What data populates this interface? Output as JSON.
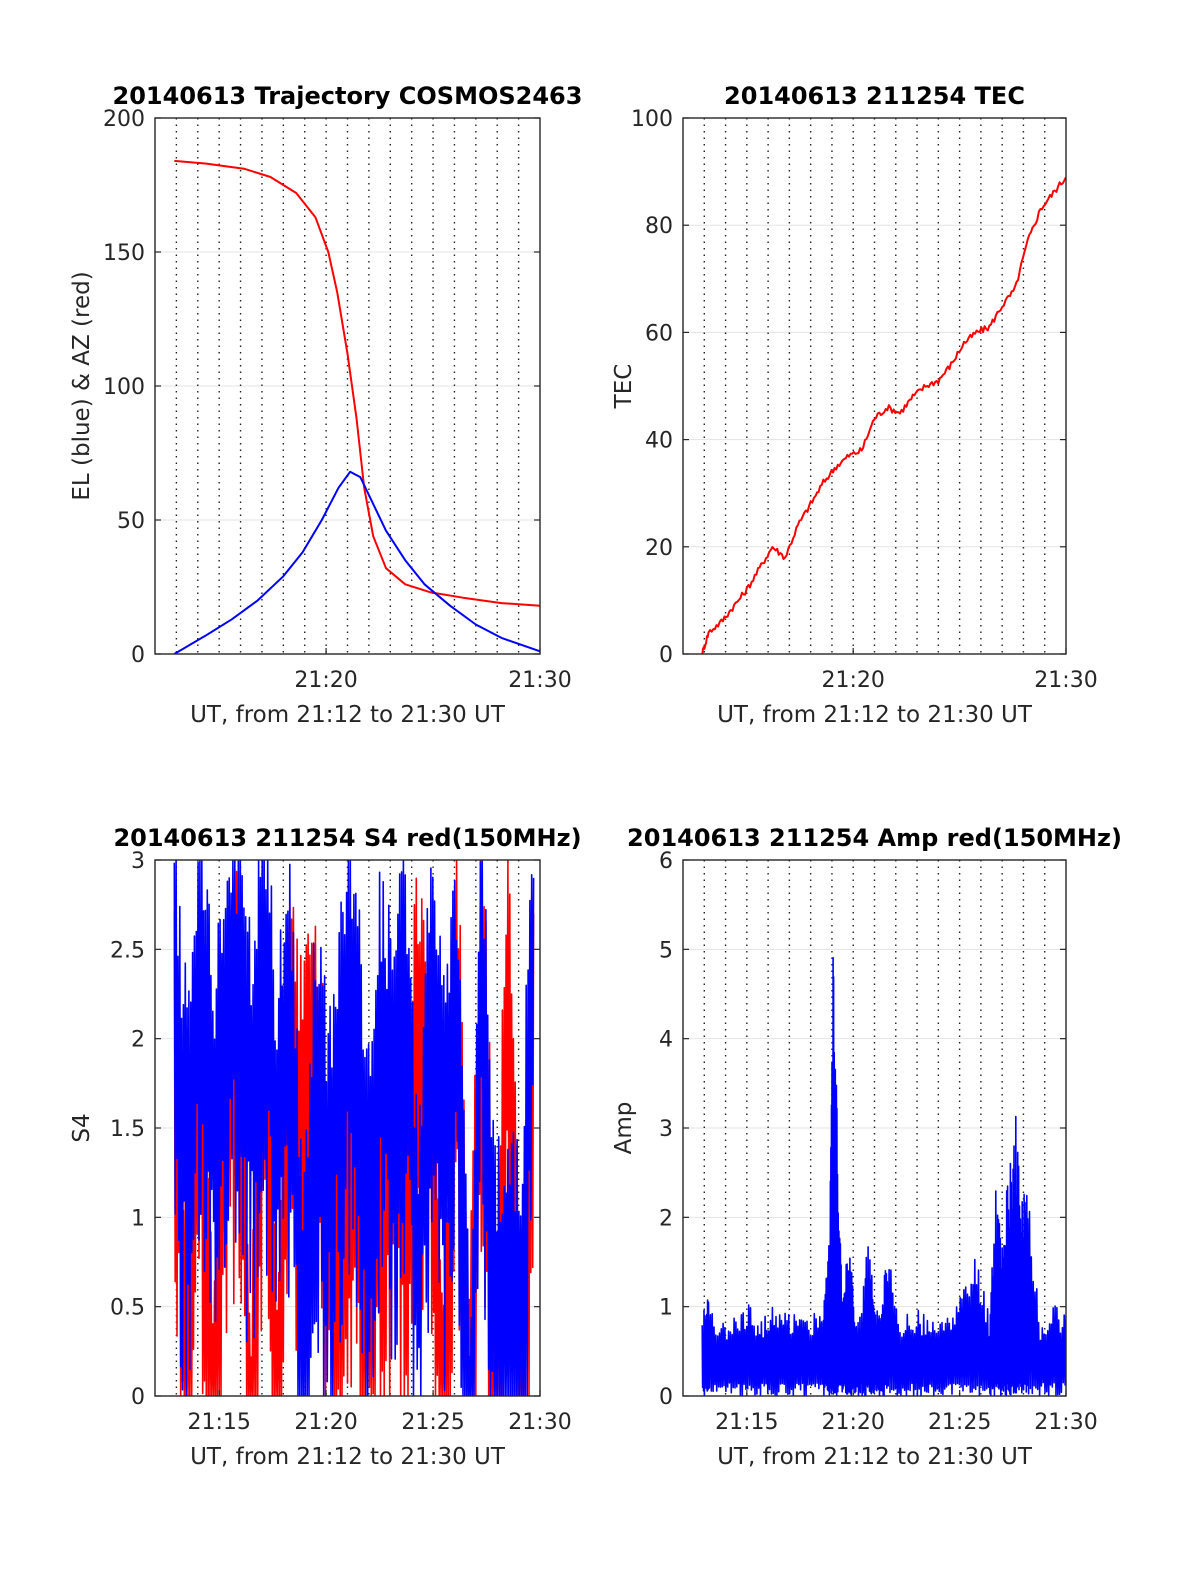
{
  "chart_data": [
    {
      "type": "line",
      "title": "20140613 Trajectory COSMOS2463",
      "xlabel": "UT, from 21:12 to 21:30 UT",
      "ylabel": "EL (blue) & AZ (red)",
      "xlim": [
        21.2,
        21.5
      ],
      "ylim": [
        0,
        200
      ],
      "xticks": [
        {
          "value": 21.3333,
          "label": "21:20"
        },
        {
          "value": 21.5,
          "label": "21:30"
        }
      ],
      "yticks": [
        {
          "value": 0,
          "label": "0"
        },
        {
          "value": 50,
          "label": "50"
        },
        {
          "value": 100,
          "label": "100"
        },
        {
          "value": 150,
          "label": "150"
        },
        {
          "value": 200,
          "label": "200"
        }
      ],
      "grid": "dotted vertical lines each minute, light horizontal grid",
      "series": [
        {
          "color": "#ff0000",
          "x": [
            21.215,
            21.24,
            21.27,
            21.29,
            21.31,
            21.325,
            21.335,
            21.342,
            21.35,
            21.357,
            21.363,
            21.37,
            21.38,
            21.395,
            21.415,
            21.44,
            21.47,
            21.5
          ],
          "y": [
            184,
            183,
            181,
            178,
            172,
            163,
            150,
            135,
            112,
            88,
            62,
            44,
            32,
            26,
            23,
            21,
            19,
            18
          ]
        },
        {
          "color": "#0000ff",
          "x": [
            21.215,
            21.24,
            21.26,
            21.28,
            21.3,
            21.315,
            21.33,
            21.343,
            21.352,
            21.36,
            21.368,
            21.38,
            21.395,
            21.41,
            21.43,
            21.45,
            21.47,
            21.5
          ],
          "y": [
            0,
            7,
            13,
            20,
            29,
            38,
            50,
            62,
            68,
            66,
            58,
            46,
            35,
            26,
            18,
            11,
            6,
            1
          ]
        }
      ]
    },
    {
      "type": "line",
      "title": "20140613 211254 TEC",
      "xlabel": "UT, from 21:12 to 21:30 UT",
      "ylabel": "TEC",
      "xlim": [
        21.2,
        21.5
      ],
      "ylim": [
        0,
        100
      ],
      "xticks": [
        {
          "value": 21.3333,
          "label": "21:20"
        },
        {
          "value": 21.5,
          "label": "21:30"
        }
      ],
      "yticks": [
        {
          "value": 0,
          "label": "0"
        },
        {
          "value": 20,
          "label": "20"
        },
        {
          "value": 40,
          "label": "40"
        },
        {
          "value": 60,
          "label": "60"
        },
        {
          "value": 80,
          "label": "80"
        },
        {
          "value": 100,
          "label": "100"
        }
      ],
      "grid": "dotted vertical lines each minute, light horizontal grid",
      "series": [
        {
          "color": "#ff0000",
          "x": [
            21.215,
            21.22,
            21.23,
            21.24,
            21.25,
            21.26,
            21.27,
            21.28,
            21.29,
            21.3,
            21.31,
            21.32,
            21.33,
            21.34,
            21.35,
            21.36,
            21.37,
            21.38,
            21.39,
            21.4,
            21.41,
            21.42,
            21.43,
            21.44,
            21.45,
            21.46,
            21.47,
            21.48,
            21.49,
            21.5
          ],
          "y": [
            0,
            4,
            6,
            9,
            12,
            16,
            20,
            18,
            24,
            28,
            32,
            35,
            37,
            38,
            44,
            46,
            45,
            48,
            50,
            51,
            54,
            58,
            60,
            61,
            65,
            68,
            77,
            83,
            86,
            89
          ]
        }
      ]
    },
    {
      "type": "line",
      "title": "20140613 211254 S4 red(150MHz)",
      "xlabel": "UT, from 21:12 to 21:30 UT",
      "ylabel": "S4",
      "xlim": [
        21.2,
        21.5
      ],
      "ylim": [
        0,
        3
      ],
      "xticks": [
        {
          "value": 21.25,
          "label": "21:15"
        },
        {
          "value": 21.3333,
          "label": "21:20"
        },
        {
          "value": 21.4167,
          "label": "21:25"
        },
        {
          "value": 21.5,
          "label": "21:30"
        }
      ],
      "yticks": [
        {
          "value": 0,
          "label": "0"
        },
        {
          "value": 0.5,
          "label": "0.5"
        },
        {
          "value": 1,
          "label": "1"
        },
        {
          "value": 1.5,
          "label": "1.5"
        },
        {
          "value": 2,
          "label": "2"
        },
        {
          "value": 2.5,
          "label": "2.5"
        },
        {
          "value": 3,
          "label": "3"
        }
      ],
      "grid": "dotted vertical lines each minute, light horizontal grid",
      "series": [
        {
          "color": "#ff0000",
          "x": [
            21.215,
            21.225,
            21.235,
            21.245,
            21.255,
            21.265,
            21.275,
            21.285,
            21.295,
            21.305,
            21.315,
            21.325,
            21.335,
            21.345,
            21.355,
            21.365,
            21.375,
            21.385,
            21.395,
            21.405,
            21.415,
            21.425,
            21.435,
            21.445,
            21.455,
            21.465,
            21.475,
            21.485,
            21.495
          ],
          "y": [
            2.5,
            0.2,
            2.4,
            0.1,
            2.2,
            2.6,
            0.1,
            2.8,
            0.3,
            2.3,
            1.8,
            2.4,
            1.2,
            1.5,
            2.2,
            0.9,
            1.6,
            2.0,
            1.4,
            2.5,
            2.1,
            0.2,
            2.9,
            0.1,
            3.0,
            0.2,
            2.9,
            0.1,
            2.7
          ]
        },
        {
          "color": "#0000ff",
          "x": [
            21.215,
            21.225,
            21.235,
            21.245,
            21.255,
            21.265,
            21.275,
            21.285,
            21.295,
            21.305,
            21.315,
            21.325,
            21.335,
            21.345,
            21.355,
            21.365,
            21.375,
            21.385,
            21.395,
            21.405,
            21.415,
            21.425,
            21.435,
            21.445,
            21.455,
            21.465,
            21.475,
            21.485,
            21.495
          ],
          "y": [
            2.6,
            1.7,
            2.8,
            1.9,
            2.5,
            2.7,
            2.0,
            2.9,
            1.8,
            2.6,
            0.6,
            2.2,
            1.6,
            2.3,
            2.7,
            1.4,
            2.4,
            2.1,
            2.6,
            1.0,
            2.7,
            1.8,
            2.5,
            0.0,
            2.8,
            0.9,
            1.0,
            0.8,
            2.9
          ]
        }
      ]
    },
    {
      "type": "line",
      "title": "20140613 211254 Amp red(150MHz)",
      "xlabel": "UT, from 21:12 to 21:30 UT",
      "ylabel": "Amp",
      "xlim": [
        21.2,
        21.5
      ],
      "ylim": [
        0,
        6
      ],
      "xticks": [
        {
          "value": 21.25,
          "label": "21:15"
        },
        {
          "value": 21.3333,
          "label": "21:20"
        },
        {
          "value": 21.4167,
          "label": "21:25"
        },
        {
          "value": 21.5,
          "label": "21:30"
        }
      ],
      "yticks": [
        {
          "value": 0,
          "label": "0"
        },
        {
          "value": 1,
          "label": "1"
        },
        {
          "value": 2,
          "label": "2"
        },
        {
          "value": 3,
          "label": "3"
        },
        {
          "value": 4,
          "label": "4"
        },
        {
          "value": 5,
          "label": "5"
        },
        {
          "value": 6,
          "label": "6"
        }
      ],
      "grid": "dotted vertical lines each minute, light horizontal grid",
      "series": [
        {
          "color": "#0000ff",
          "x": [
            21.215,
            21.22,
            21.23,
            21.24,
            21.25,
            21.26,
            21.27,
            21.28,
            21.29,
            21.3,
            21.31,
            21.315,
            21.318,
            21.321,
            21.325,
            21.33,
            21.335,
            21.34,
            21.345,
            21.35,
            21.355,
            21.36,
            21.37,
            21.38,
            21.39,
            21.4,
            21.41,
            21.42,
            21.43,
            21.44,
            21.445,
            21.45,
            21.455,
            21.46,
            21.465,
            21.47,
            21.48,
            21.49,
            21.5
          ],
          "y": [
            0.9,
            1.2,
            0.8,
            1.0,
            1.05,
            0.9,
            1.0,
            0.95,
            1.0,
            0.9,
            1.1,
            2.0,
            5.7,
            3.0,
            1.0,
            1.9,
            0.8,
            1.0,
            1.9,
            1.0,
            0.9,
            1.7,
            0.8,
            1.0,
            0.9,
            0.8,
            1.0,
            1.2,
            1.6,
            0.9,
            2.4,
            1.8,
            2.5,
            3.3,
            2.2,
            2.4,
            0.8,
            1.1,
            0.9
          ]
        }
      ]
    }
  ]
}
